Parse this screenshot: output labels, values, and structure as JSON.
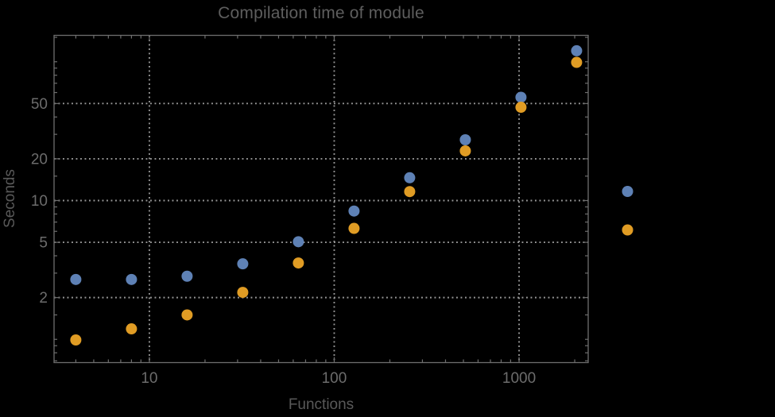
{
  "window": {
    "background_color": "#000000"
  },
  "chart_data": {
    "type": "scatter",
    "title": "Compilation time of module",
    "xlabel": "Functions",
    "ylabel": "Seconds",
    "x_scale": "log",
    "y_scale": "log",
    "x_range": [
      3.05,
      2366
    ],
    "y_range": [
      0.68,
      155
    ],
    "grid": "dotted lines at major ticks on both axes",
    "x": [
      4,
      8,
      16,
      32,
      64,
      128,
      256,
      512,
      1024,
      2048
    ],
    "series": [
      {
        "key": "blue",
        "color": "#5e81b5",
        "values": [
          2.7,
          2.7,
          2.85,
          3.5,
          5.05,
          8.4,
          14.6,
          27.4,
          55.5,
          120
        ]
      },
      {
        "key": "orange",
        "color": "#e09c24",
        "values": [
          0.99,
          1.19,
          1.5,
          2.18,
          3.55,
          6.3,
          11.6,
          22.8,
          47,
          99
        ]
      }
    ],
    "x_ticks": {
      "major": [
        {
          "v": 10,
          "label": "10"
        },
        {
          "v": 100,
          "label": "100"
        },
        {
          "v": 1000,
          "label": "1000"
        }
      ],
      "minor": [
        4,
        5,
        6,
        7,
        8,
        9,
        20,
        30,
        40,
        50,
        60,
        70,
        80,
        90,
        200,
        300,
        400,
        500,
        600,
        700,
        800,
        900,
        2000
      ]
    },
    "y_ticks": {
      "major": [
        {
          "v": 2,
          "label": "2"
        },
        {
          "v": 5,
          "label": "5"
        },
        {
          "v": 10,
          "label": "10"
        },
        {
          "v": 20,
          "label": "20"
        },
        {
          "v": 50,
          "label": "50"
        }
      ],
      "minor": [
        0.7,
        0.8,
        0.9,
        1,
        1.5,
        3,
        4,
        6,
        7,
        8,
        9,
        15,
        30,
        40,
        60,
        70,
        80,
        90,
        100,
        150
      ]
    },
    "legend": {
      "position": "outside-right",
      "markers": [
        {
          "color": "#5e81b5"
        },
        {
          "color": "#e09c24"
        }
      ]
    },
    "colors": {
      "frame": "#6e6e6e",
      "grid": "#989898",
      "tick": "#6e6e6e",
      "title_text": "#5e5e5e",
      "tick_text": "#6c6c6c",
      "axis_label_text": "#595959"
    }
  }
}
